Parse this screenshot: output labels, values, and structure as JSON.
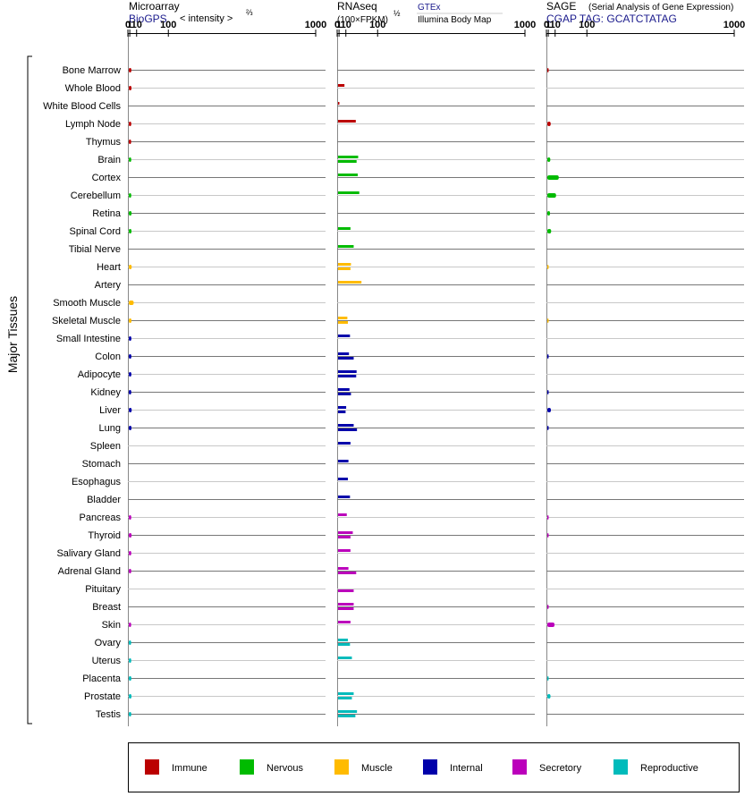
{
  "chart_data": {
    "type": "bar",
    "orientation": "horizontal",
    "y_group_label": "Major Tissues",
    "categories": [
      "Bone Marrow",
      "Whole Blood",
      "White Blood Cells",
      "Lymph Node",
      "Thymus",
      "Brain",
      "Cortex",
      "Cerebellum",
      "Retina",
      "Spinal Cord",
      "Tibial Nerve",
      "Heart",
      "Artery",
      "Smooth Muscle",
      "Skeletal Muscle",
      "Small Intestine",
      "Colon",
      "Adipocyte",
      "Kidney",
      "Liver",
      "Lung",
      "Spleen",
      "Stomach",
      "Esophagus",
      "Bladder",
      "Pancreas",
      "Thyroid",
      "Salivary Gland",
      "Adrenal Gland",
      "Pituitary",
      "Breast",
      "Skin",
      "Ovary",
      "Uterus",
      "Placenta",
      "Prostate",
      "Testis"
    ],
    "tissue_groups": [
      "immune",
      "immune",
      "immune",
      "immune",
      "immune",
      "nervous",
      "nervous",
      "nervous",
      "nervous",
      "nervous",
      "nervous",
      "muscle",
      "muscle",
      "muscle",
      "muscle",
      "internal",
      "internal",
      "internal",
      "internal",
      "internal",
      "internal",
      "internal",
      "internal",
      "internal",
      "internal",
      "secretory",
      "secretory",
      "secretory",
      "secretory",
      "secretory",
      "secretory",
      "secretory",
      "reproductive",
      "reproductive",
      "reproductive",
      "reproductive",
      "reproductive"
    ],
    "group_colors": {
      "immune": "#bb0000",
      "nervous": "#00bb00",
      "muscle": "#ffbb00",
      "internal": "#0000aa",
      "secretory": "#bb00bb",
      "reproductive": "#00bbbb"
    },
    "axis_ticks": [
      "0",
      "1",
      "10",
      "100",
      "1000"
    ],
    "axis_tick_values": [
      0,
      1,
      10,
      100,
      1000
    ],
    "axis_scale": "power 2/3",
    "panels": [
      {
        "title": "Microarray",
        "subtitle": "BioGPS",
        "axis_label": "< intensity >",
        "axis_label_exponent": "⅔",
        "series": [
          {
            "values": [
              1.6,
              1.7,
              null,
              1.5,
              1.4,
              1.5,
              null,
              1.5,
              1.8,
              1.7,
              null,
              1.9,
              null,
              4.2,
              1.7,
              1.6,
              1.6,
              1.6,
              1.5,
              1.9,
              1.7,
              null,
              null,
              null,
              null,
              1.5,
              1.8,
              1.5,
              1.5,
              null,
              null,
              1.4,
              1.4,
              1.5,
              1.6,
              1.7,
              1.5
            ]
          }
        ]
      },
      {
        "title": "RNAseq",
        "subtitle": "(100×FPKM)",
        "axis_label_exponent": "½",
        "legend_top": "GTEx",
        "legend_bottom": "Illumina Body Map",
        "series": [
          {
            "name": "GTEx",
            "values": [
              null,
              6.3,
              0.01,
              29,
              null,
              35,
              34,
              38,
              null,
              17,
              24,
              18,
              44,
              null,
              11,
              16,
              14,
              31,
              15,
              9,
              24,
              17,
              13,
              12,
              16,
              10,
              22,
              17,
              13,
              null,
              24,
              17,
              12,
              20,
              null,
              24,
              32
            ]
          },
          {
            "name": "Illumina Body Map",
            "values": [
              null,
              null,
              null,
              null,
              null,
              31,
              null,
              null,
              null,
              null,
              null,
              17,
              null,
              null,
              12,
              null,
              24,
              30,
              18,
              8,
              32,
              null,
              null,
              null,
              null,
              null,
              17,
              null,
              30,
              24,
              24,
              null,
              16,
              null,
              null,
              20,
              28
            ]
          }
        ]
      },
      {
        "title": "SAGE",
        "title_note": "(Serial Analysis of Gene Expression)",
        "subtitle": "CGAP TAG: GCATCTATAG",
        "series": [
          {
            "values": [
              0.03,
              null,
              null,
              2.4,
              null,
              2.0,
              15,
              10,
              1.7,
              2.9,
              null,
              0.005,
              null,
              null,
              0.005,
              null,
              0.02,
              null,
              0.02,
              2.6,
              0.02,
              null,
              null,
              null,
              null,
              0.02,
              0.02,
              null,
              null,
              null,
              0.02,
              7.5,
              null,
              null,
              0.02,
              2.2,
              null
            ]
          }
        ]
      }
    ],
    "legend": {
      "position": "bottom",
      "items": [
        {
          "key": "immune",
          "label": "Immune"
        },
        {
          "key": "nervous",
          "label": "Nervous"
        },
        {
          "key": "muscle",
          "label": "Muscle"
        },
        {
          "key": "internal",
          "label": "Internal"
        },
        {
          "key": "secretory",
          "label": "Secretory"
        },
        {
          "key": "reproductive",
          "label": "Reproductive"
        }
      ]
    }
  }
}
